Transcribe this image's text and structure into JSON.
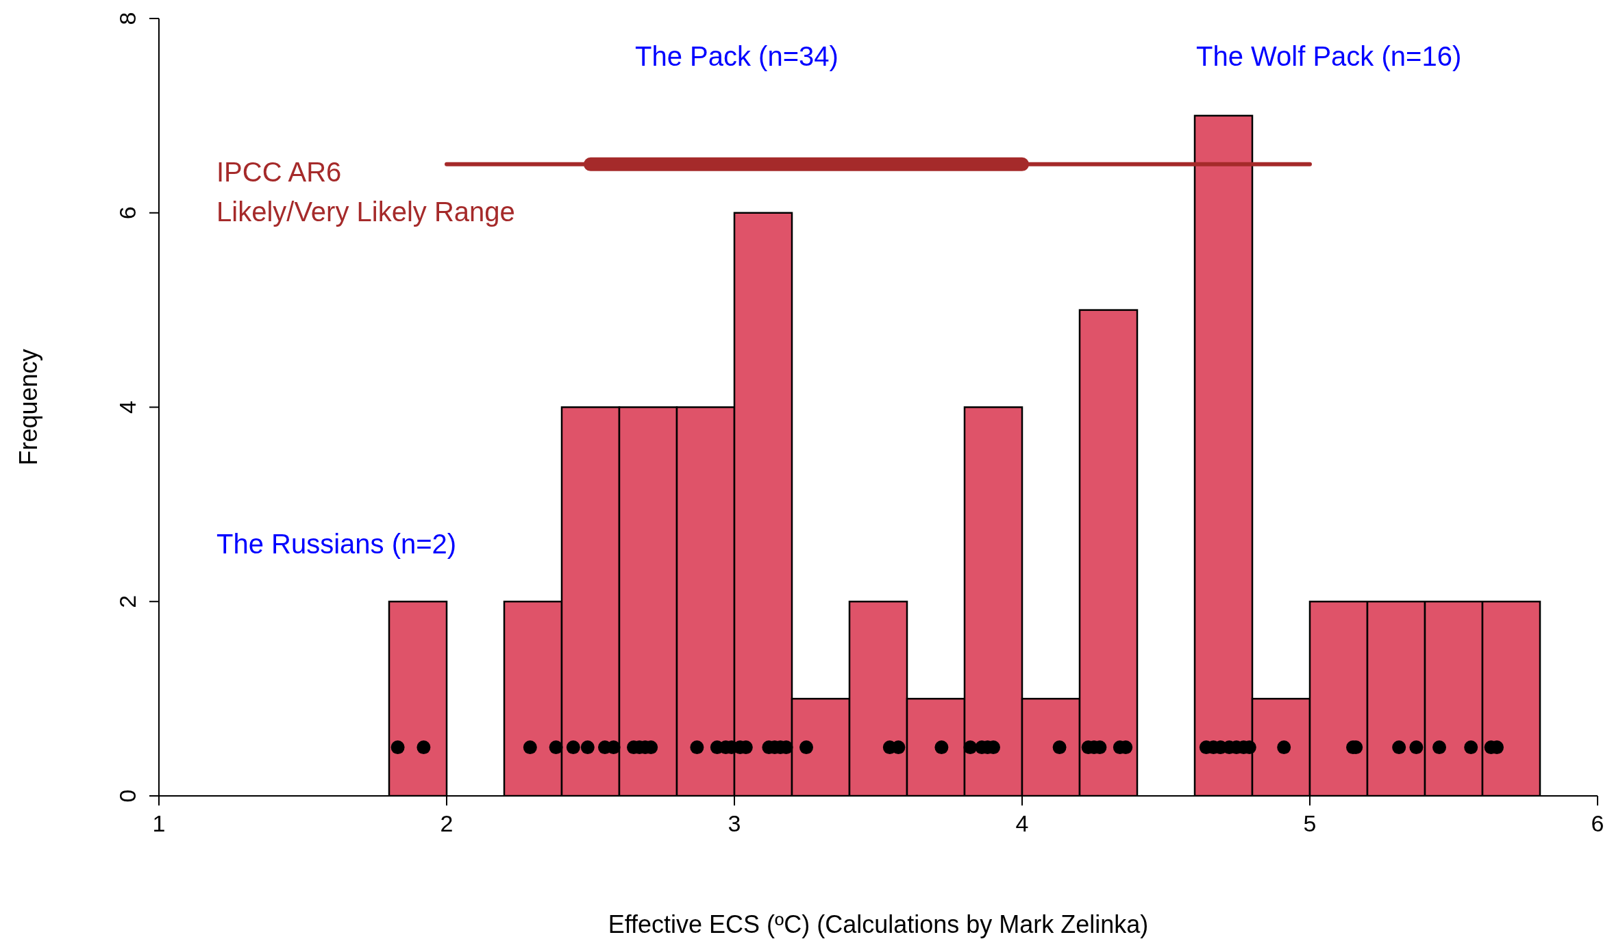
{
  "chart_data": {
    "type": "histogram",
    "xlabel": "Effective ECS (ºC) (Calculations by Mark Zelinka)",
    "ylabel": "Frequency",
    "xlim": [
      1,
      6
    ],
    "xticks": [
      1,
      2,
      3,
      4,
      5,
      6
    ],
    "ylim": [
      0,
      8
    ],
    "yticks": [
      0,
      2,
      4,
      6,
      8
    ],
    "series": [
      {
        "type": "histogram",
        "color": "#df5369",
        "bins": [
          1.8,
          2.0,
          2.2,
          2.4,
          2.6,
          2.8,
          3.0,
          3.2,
          3.4,
          3.6,
          3.8,
          4.0,
          4.2,
          4.4,
          4.6,
          4.8,
          5.0,
          5.2,
          5.4,
          5.6,
          5.8
        ],
        "values": [
          2,
          0,
          2,
          4,
          4,
          4,
          6,
          1,
          2,
          1,
          4,
          1,
          5,
          0,
          7,
          1,
          2,
          2,
          2,
          2
        ]
      },
      {
        "type": "scatter",
        "color": "#000000",
        "marker": "circle",
        "x": [
          1.83,
          1.92,
          2.29,
          2.38,
          2.44,
          2.49,
          2.55,
          2.58,
          2.65,
          2.67,
          2.69,
          2.71,
          2.87,
          2.94,
          2.97,
          2.99,
          3.02,
          3.04,
          3.12,
          3.14,
          3.16,
          3.18,
          3.25,
          3.54,
          3.57,
          3.72,
          3.82,
          3.86,
          3.88,
          3.9,
          4.13,
          4.23,
          4.25,
          4.27,
          4.34,
          4.36,
          4.64,
          4.665,
          4.69,
          4.72,
          4.745,
          4.77,
          4.79,
          4.91,
          5.15,
          5.16,
          5.31,
          5.37,
          5.45,
          5.56,
          5.63,
          5.65
        ],
        "values": [
          0.5,
          0.5,
          0.5,
          0.5,
          0.5,
          0.5,
          0.5,
          0.5,
          0.5,
          0.5,
          0.5,
          0.5,
          0.5,
          0.5,
          0.5,
          0.5,
          0.5,
          0.5,
          0.5,
          0.5,
          0.5,
          0.5,
          0.5,
          0.5,
          0.5,
          0.5,
          0.5,
          0.5,
          0.5,
          0.5,
          0.5,
          0.5,
          0.5,
          0.5,
          0.5,
          0.5,
          0.5,
          0.5,
          0.5,
          0.5,
          0.5,
          0.5,
          0.5,
          0.5,
          0.5,
          0.5,
          0.5,
          0.5,
          0.5,
          0.5,
          0.5,
          0.5
        ]
      },
      {
        "type": "line",
        "color": "#a52a2a",
        "x": [
          2,
          5
        ],
        "values": [
          6.5,
          6.5
        ]
      },
      {
        "type": "line",
        "color": "#a52a2a",
        "x": [
          2.5,
          4
        ],
        "values": [
          6.5,
          6.5
        ]
      }
    ],
    "annotations": [
      "The Pack (n=34)",
      "The Wolf Pack (n=16)",
      "The Russians (n=2)",
      "IPCC AR6\nLikely/Very Likely Range"
    ]
  }
}
